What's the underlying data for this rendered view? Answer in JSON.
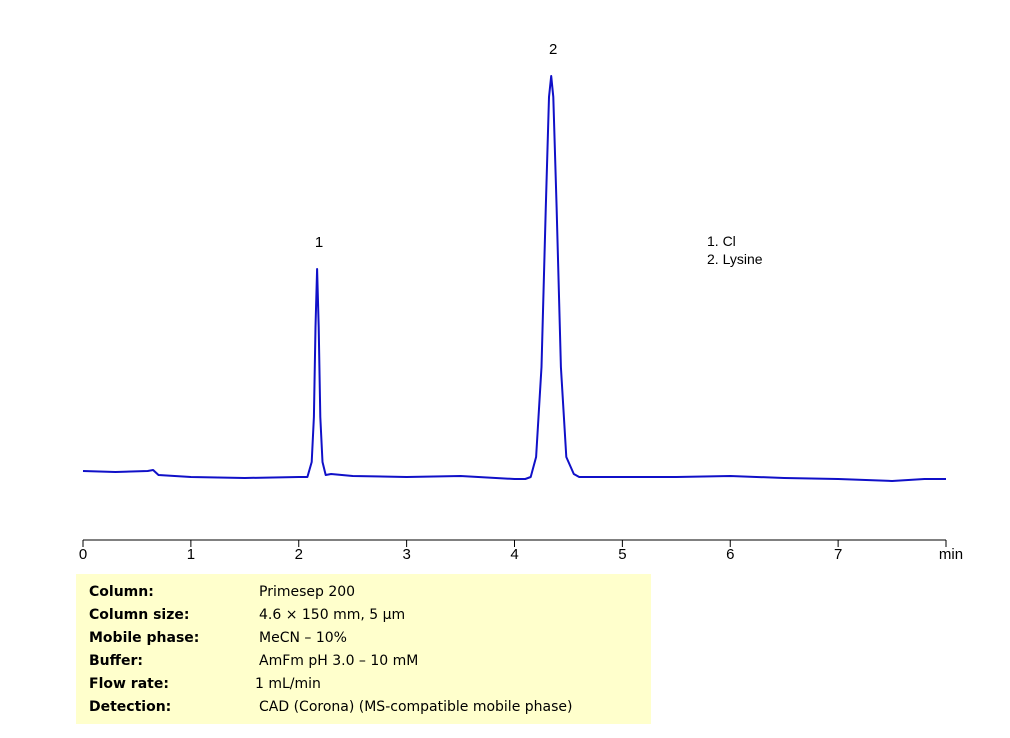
{
  "chart_data": {
    "type": "line",
    "title": "",
    "xlabel": "min",
    "ylabel": "",
    "xlim": [
      0,
      8
    ],
    "ylim": [
      -63,
      420
    ],
    "grid": false,
    "x_ticks": [
      "0",
      "1",
      "2",
      "3",
      "4",
      "5",
      "6",
      "7"
    ],
    "x_unit_label": "min",
    "line_color": "#1010c8",
    "series": [
      {
        "x": [
          0,
          0.3,
          0.6,
          0.65,
          0.7,
          1.0,
          1.5,
          2.0,
          2.08,
          2.12,
          2.14,
          2.155,
          2.17,
          2.185,
          2.2,
          2.22,
          2.25,
          2.3,
          2.5,
          3.0,
          3.5,
          4.0,
          4.1,
          4.15,
          4.2,
          4.25,
          4.29,
          4.32,
          4.34,
          4.36,
          4.39,
          4.43,
          4.48,
          4.55,
          4.6,
          5.0,
          5.5,
          6.0,
          6.5,
          7.0,
          7.5,
          7.8,
          8.0
        ],
        "y": [
          6,
          5,
          6,
          7,
          2,
          0,
          -1,
          0,
          0,
          15,
          60,
          150,
          208,
          150,
          60,
          15,
          2,
          3,
          1,
          0,
          1,
          -2,
          -2,
          0,
          20,
          110,
          270,
          380,
          401,
          380,
          270,
          110,
          20,
          3,
          0,
          0,
          0,
          1,
          -1,
          -2,
          -4,
          -2,
          -2
        ]
      }
    ],
    "peaks": [
      {
        "label": "1",
        "x": 2.17,
        "y": 208
      },
      {
        "label": "2",
        "x": 4.34,
        "y": 401
      }
    ],
    "legend": [
      "1. Cl",
      "2. Lysine"
    ],
    "legend_position": "right"
  },
  "conditions": [
    {
      "label": "Column:",
      "value": "Primesep 200"
    },
    {
      "label": "Column size:",
      "value": "4.6 × 150 mm, 5 µm"
    },
    {
      "label": "Mobile phase:",
      "value": "MeCN – 10%"
    },
    {
      "label": "Buffer:",
      "value": "AmFm pH 3.0 – 10 mM"
    },
    {
      "label": "Flow rate:",
      "value": "1 mL/min"
    },
    {
      "label": "Detection:",
      "value": "CAD (Corona) (MS-compatible mobile phase)"
    }
  ]
}
